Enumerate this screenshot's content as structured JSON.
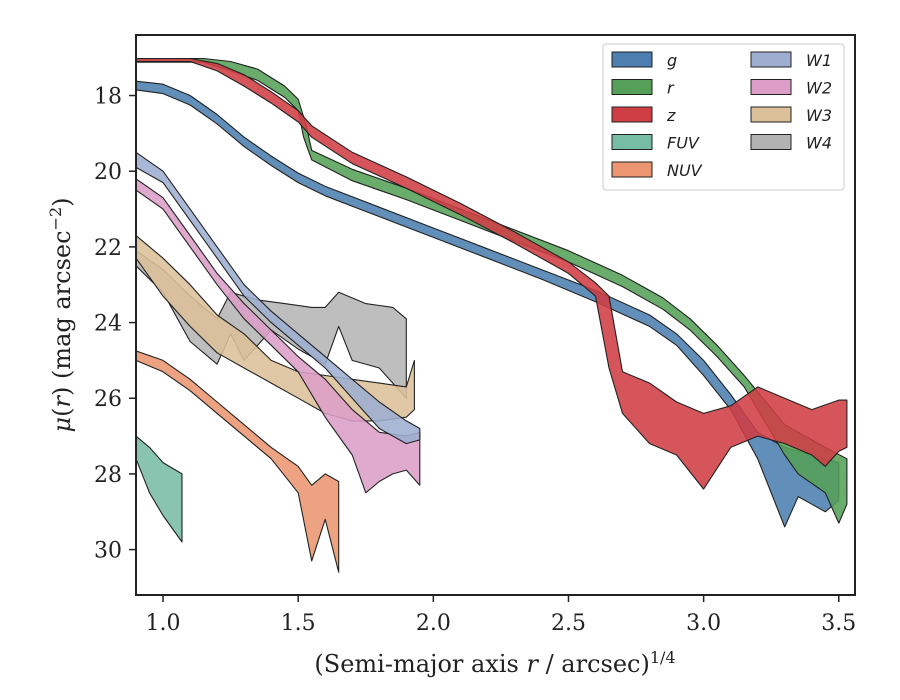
{
  "chart_data": {
    "type": "area",
    "xlabel": "(Semi-major axis r / arcsec)1/4",
    "ylabel": "μ(r) (mag arcsec−2)",
    "xlim": [
      0.9,
      3.56
    ],
    "ylim": [
      31.2,
      16.4
    ],
    "y_inverted": true,
    "x_ticks": [
      1.0,
      1.5,
      2.0,
      2.5,
      3.0,
      3.5
    ],
    "x_tick_labels": [
      "1.0",
      "1.5",
      "2.0",
      "2.5",
      "3.0",
      "3.5"
    ],
    "y_ticks": [
      18,
      20,
      22,
      24,
      26,
      28,
      30
    ],
    "y_tick_labels": [
      "18",
      "20",
      "22",
      "24",
      "26",
      "28",
      "30"
    ],
    "grid": false,
    "legend_position": "top-right",
    "legend_columns": 2,
    "series": [
      {
        "name": "g",
        "color": "#4c7fb0",
        "upper": [
          [
            0.9,
            17.62
          ],
          [
            1.0,
            17.7
          ],
          [
            1.1,
            18.0
          ],
          [
            1.2,
            18.5
          ],
          [
            1.3,
            19.1
          ],
          [
            1.4,
            19.6
          ],
          [
            1.5,
            20.05
          ],
          [
            1.6,
            20.4
          ],
          [
            1.8,
            20.95
          ],
          [
            2.0,
            21.5
          ],
          [
            2.2,
            22.05
          ],
          [
            2.4,
            22.6
          ],
          [
            2.6,
            23.15
          ],
          [
            2.8,
            23.8
          ],
          [
            2.9,
            24.3
          ],
          [
            3.0,
            25.0
          ],
          [
            3.1,
            25.9
          ],
          [
            3.2,
            26.9
          ],
          [
            3.3,
            27.3
          ],
          [
            3.4,
            27.5
          ],
          [
            3.5,
            27.7
          ]
        ],
        "lower": [
          [
            3.5,
            28.7
          ],
          [
            3.45,
            29.0
          ],
          [
            3.4,
            28.8
          ],
          [
            3.35,
            28.6
          ],
          [
            3.3,
            29.4
          ],
          [
            3.2,
            27.6
          ],
          [
            3.1,
            26.3
          ],
          [
            3.0,
            25.4
          ],
          [
            2.9,
            24.6
          ],
          [
            2.8,
            24.1
          ],
          [
            2.6,
            23.45
          ],
          [
            2.4,
            22.85
          ],
          [
            2.2,
            22.3
          ],
          [
            2.0,
            21.75
          ],
          [
            1.8,
            21.2
          ],
          [
            1.6,
            20.65
          ],
          [
            1.5,
            20.3
          ],
          [
            1.4,
            19.85
          ],
          [
            1.3,
            19.35
          ],
          [
            1.2,
            18.75
          ],
          [
            1.1,
            18.25
          ],
          [
            1.0,
            17.95
          ],
          [
            0.9,
            17.85
          ]
        ]
      },
      {
        "name": "r",
        "color": "#55a058",
        "upper": [
          [
            0.9,
            17.02
          ],
          [
            1.15,
            17.02
          ],
          [
            1.25,
            17.1
          ],
          [
            1.35,
            17.3
          ],
          [
            1.45,
            17.75
          ],
          [
            1.5,
            18.1
          ],
          [
            1.53,
            18.8
          ],
          [
            1.55,
            19.45
          ],
          [
            1.7,
            19.95
          ],
          [
            1.9,
            20.45
          ],
          [
            2.1,
            21.0
          ],
          [
            2.3,
            21.55
          ],
          [
            2.5,
            22.1
          ],
          [
            2.7,
            22.75
          ],
          [
            2.85,
            23.35
          ],
          [
            2.95,
            23.9
          ],
          [
            3.05,
            24.6
          ],
          [
            3.15,
            25.4
          ],
          [
            3.3,
            26.7
          ],
          [
            3.45,
            27.3
          ],
          [
            3.53,
            27.6
          ]
        ],
        "lower": [
          [
            3.53,
            28.8
          ],
          [
            3.5,
            29.3
          ],
          [
            3.45,
            28.5
          ],
          [
            3.35,
            28.0
          ],
          [
            3.3,
            27.5
          ],
          [
            3.15,
            25.7
          ],
          [
            3.05,
            24.9
          ],
          [
            2.95,
            24.2
          ],
          [
            2.85,
            23.65
          ],
          [
            2.7,
            23.05
          ],
          [
            2.5,
            22.4
          ],
          [
            2.3,
            21.85
          ],
          [
            2.1,
            21.3
          ],
          [
            1.9,
            20.75
          ],
          [
            1.7,
            20.25
          ],
          [
            1.55,
            19.7
          ],
          [
            1.52,
            19.1
          ],
          [
            1.5,
            18.4
          ],
          [
            1.45,
            18.05
          ],
          [
            1.35,
            17.6
          ],
          [
            1.25,
            17.35
          ],
          [
            1.15,
            17.12
          ],
          [
            0.9,
            17.12
          ]
        ]
      },
      {
        "name": "z",
        "color": "#cf3e44",
        "upper": [
          [
            0.9,
            17.02
          ],
          [
            1.1,
            17.02
          ],
          [
            1.2,
            17.15
          ],
          [
            1.3,
            17.45
          ],
          [
            1.4,
            17.9
          ],
          [
            1.5,
            18.4
          ],
          [
            1.55,
            18.8
          ],
          [
            1.7,
            19.5
          ],
          [
            1.9,
            20.15
          ],
          [
            2.1,
            20.85
          ],
          [
            2.3,
            21.6
          ],
          [
            2.5,
            22.4
          ],
          [
            2.6,
            22.95
          ],
          [
            2.65,
            23.3
          ],
          [
            2.7,
            25.3
          ],
          [
            2.8,
            25.6
          ],
          [
            2.9,
            26.1
          ],
          [
            3.0,
            26.4
          ],
          [
            3.1,
            26.2
          ],
          [
            3.2,
            25.7
          ],
          [
            3.3,
            26.0
          ],
          [
            3.4,
            26.3
          ],
          [
            3.5,
            26.05
          ],
          [
            3.53,
            26.05
          ]
        ],
        "lower": [
          [
            3.53,
            27.3
          ],
          [
            3.5,
            27.4
          ],
          [
            3.45,
            27.8
          ],
          [
            3.4,
            27.5
          ],
          [
            3.3,
            27.2
          ],
          [
            3.2,
            27.0
          ],
          [
            3.1,
            27.3
          ],
          [
            3.0,
            28.4
          ],
          [
            2.9,
            27.5
          ],
          [
            2.8,
            27.2
          ],
          [
            2.7,
            26.4
          ],
          [
            2.65,
            25.2
          ],
          [
            2.6,
            23.3
          ],
          [
            2.5,
            22.7
          ],
          [
            2.3,
            21.9
          ],
          [
            2.1,
            21.15
          ],
          [
            1.9,
            20.45
          ],
          [
            1.7,
            19.8
          ],
          [
            1.55,
            19.1
          ],
          [
            1.5,
            18.7
          ],
          [
            1.4,
            18.2
          ],
          [
            1.3,
            17.75
          ],
          [
            1.2,
            17.35
          ],
          [
            1.1,
            17.1
          ],
          [
            0.9,
            17.1
          ]
        ]
      },
      {
        "name": "FUV",
        "color": "#77bca4",
        "upper": [
          [
            0.9,
            27.0
          ],
          [
            0.95,
            27.3
          ],
          [
            1.0,
            27.7
          ],
          [
            1.07,
            28.0
          ]
        ],
        "lower": [
          [
            1.07,
            29.8
          ],
          [
            1.0,
            29.1
          ],
          [
            0.95,
            28.5
          ],
          [
            0.9,
            27.6
          ]
        ]
      },
      {
        "name": "NUV",
        "color": "#eb9670",
        "upper": [
          [
            0.9,
            24.75
          ],
          [
            1.0,
            25.0
          ],
          [
            1.1,
            25.5
          ],
          [
            1.2,
            26.1
          ],
          [
            1.3,
            26.7
          ],
          [
            1.4,
            27.3
          ],
          [
            1.5,
            27.8
          ],
          [
            1.55,
            28.3
          ],
          [
            1.6,
            28.0
          ],
          [
            1.65,
            28.2
          ]
        ],
        "lower": [
          [
            1.65,
            30.6
          ],
          [
            1.6,
            29.2
          ],
          [
            1.55,
            30.3
          ],
          [
            1.5,
            28.5
          ],
          [
            1.4,
            27.6
          ],
          [
            1.3,
            27.0
          ],
          [
            1.2,
            26.4
          ],
          [
            1.1,
            25.8
          ],
          [
            1.0,
            25.3
          ],
          [
            0.9,
            25.0
          ]
        ]
      },
      {
        "name": "W1",
        "color": "#9daed0",
        "upper": [
          [
            0.9,
            19.5
          ],
          [
            1.0,
            20.0
          ],
          [
            1.1,
            21.0
          ],
          [
            1.2,
            22.0
          ],
          [
            1.3,
            23.0
          ],
          [
            1.4,
            23.7
          ],
          [
            1.5,
            24.3
          ],
          [
            1.6,
            24.9
          ],
          [
            1.7,
            25.5
          ],
          [
            1.8,
            26.1
          ],
          [
            1.9,
            26.6
          ],
          [
            1.95,
            26.8
          ]
        ],
        "lower": [
          [
            1.95,
            27.1
          ],
          [
            1.9,
            27.2
          ],
          [
            1.8,
            26.8
          ],
          [
            1.7,
            26.0
          ],
          [
            1.6,
            25.2
          ],
          [
            1.5,
            24.6
          ],
          [
            1.4,
            24.0
          ],
          [
            1.3,
            23.3
          ],
          [
            1.2,
            22.3
          ],
          [
            1.1,
            21.3
          ],
          [
            1.0,
            20.3
          ],
          [
            0.9,
            19.9
          ]
        ]
      },
      {
        "name": "W2",
        "color": "#dc9ec8",
        "upper": [
          [
            0.9,
            20.2
          ],
          [
            1.0,
            20.7
          ],
          [
            1.1,
            21.7
          ],
          [
            1.2,
            22.7
          ],
          [
            1.3,
            23.5
          ],
          [
            1.4,
            24.2
          ],
          [
            1.5,
            24.9
          ],
          [
            1.6,
            25.5
          ],
          [
            1.7,
            26.3
          ],
          [
            1.8,
            26.9
          ],
          [
            1.9,
            27.0
          ],
          [
            1.95,
            26.9
          ]
        ],
        "lower": [
          [
            1.95,
            28.3
          ],
          [
            1.9,
            27.9
          ],
          [
            1.85,
            28.0
          ],
          [
            1.8,
            28.2
          ],
          [
            1.75,
            28.5
          ],
          [
            1.7,
            27.5
          ],
          [
            1.6,
            26.5
          ],
          [
            1.5,
            25.3
          ],
          [
            1.4,
            24.6
          ],
          [
            1.3,
            23.9
          ],
          [
            1.2,
            23.0
          ],
          [
            1.1,
            22.0
          ],
          [
            1.0,
            21.0
          ],
          [
            0.9,
            20.5
          ]
        ]
      },
      {
        "name": "W3",
        "color": "#dcc09a",
        "upper": [
          [
            0.9,
            21.7
          ],
          [
            1.0,
            22.3
          ],
          [
            1.1,
            23.0
          ],
          [
            1.2,
            23.8
          ],
          [
            1.3,
            24.3
          ],
          [
            1.4,
            25.0
          ],
          [
            1.5,
            25.3
          ],
          [
            1.6,
            25.4
          ],
          [
            1.7,
            25.5
          ],
          [
            1.8,
            25.6
          ],
          [
            1.9,
            25.7
          ],
          [
            1.93,
            25.0
          ]
        ],
        "lower": [
          [
            1.93,
            26.3
          ],
          [
            1.9,
            26.5
          ],
          [
            1.8,
            26.6
          ],
          [
            1.7,
            26.6
          ],
          [
            1.6,
            26.4
          ],
          [
            1.5,
            26.0
          ],
          [
            1.4,
            25.6
          ],
          [
            1.3,
            25.2
          ],
          [
            1.2,
            24.8
          ],
          [
            1.1,
            24.1
          ],
          [
            1.0,
            23.3
          ],
          [
            0.9,
            22.3
          ]
        ]
      },
      {
        "name": "W4",
        "color": "#b3b3b3",
        "upper": [
          [
            0.9,
            22.1
          ],
          [
            1.0,
            22.6
          ],
          [
            1.1,
            23.3
          ],
          [
            1.2,
            23.9
          ],
          [
            1.25,
            23.2
          ],
          [
            1.35,
            23.4
          ],
          [
            1.45,
            23.5
          ],
          [
            1.55,
            23.6
          ],
          [
            1.6,
            23.6
          ],
          [
            1.65,
            23.2
          ],
          [
            1.75,
            23.5
          ],
          [
            1.85,
            23.6
          ],
          [
            1.9,
            23.9
          ]
        ],
        "lower": [
          [
            1.9,
            26.0
          ],
          [
            1.8,
            25.2
          ],
          [
            1.7,
            25.0
          ],
          [
            1.65,
            24.1
          ],
          [
            1.6,
            25.1
          ],
          [
            1.5,
            24.7
          ],
          [
            1.4,
            24.2
          ],
          [
            1.3,
            25.0
          ],
          [
            1.25,
            24.3
          ],
          [
            1.2,
            25.1
          ],
          [
            1.1,
            24.5
          ],
          [
            1.0,
            23.2
          ],
          [
            0.9,
            22.5
          ]
        ]
      }
    ]
  }
}
